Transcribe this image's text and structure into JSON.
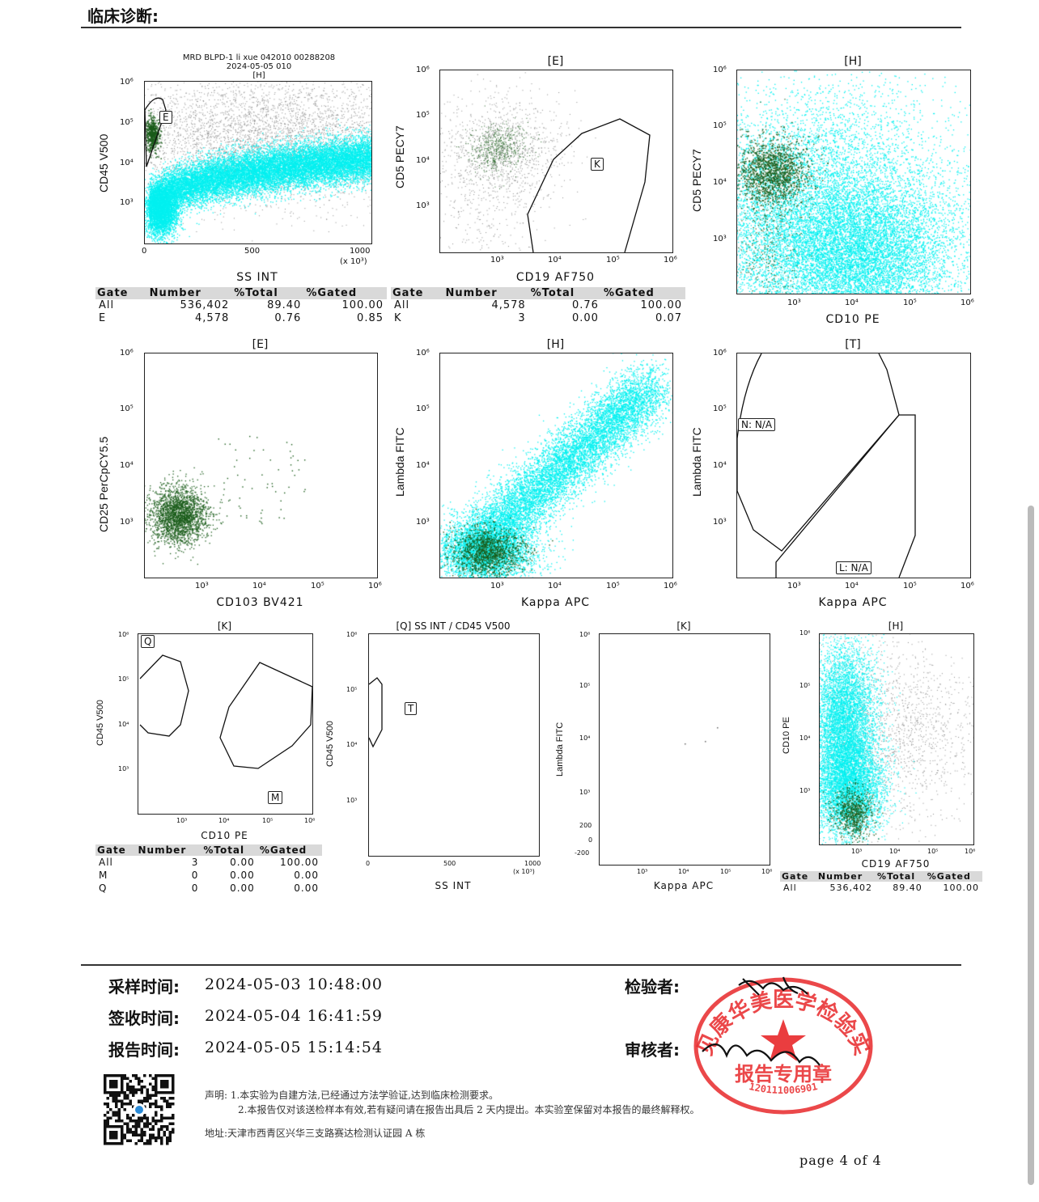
{
  "heading": "临床诊断:",
  "colors": {
    "cyan": "#00f0f0",
    "green": "#1a5c1a",
    "gray": "#8a8a8a"
  },
  "panels": [
    {
      "id": "p1",
      "title1": "MRD BLPD-1 li xue 042010 00288208",
      "title2": "2024-05-05 010",
      "title3": "[H]",
      "xlabel": "SS INT",
      "ylabel": "CD45 V500",
      "xticks": [
        "0",
        "500",
        "1000"
      ],
      "xunit": "(x 10³)",
      "yticks": [
        "10⁶",
        "10⁵",
        "10⁴",
        "10³"
      ],
      "gates": [
        "E"
      ]
    },
    {
      "id": "p2",
      "title": "[E]",
      "xlabel": "CD19 AF750",
      "ylabel": "CD5 PECY7",
      "xticks": [
        "10³",
        "10⁴",
        "10⁵",
        "10⁶"
      ],
      "yticks": [
        "10⁶",
        "10⁵",
        "10⁴",
        "10³"
      ],
      "gates": [
        "K"
      ]
    },
    {
      "id": "p3",
      "title": "[H]",
      "xlabel": "CD10 PE",
      "ylabel": "CD5 PECY7",
      "xticks": [
        "10³",
        "10⁴",
        "10⁵",
        "10⁶"
      ],
      "yticks": [
        "10⁶",
        "10⁵",
        "10⁴",
        "10³"
      ]
    },
    {
      "id": "p4",
      "title": "[E]",
      "xlabel": "CD103 BV421",
      "ylabel": "CD25 PerCpCY5.5",
      "xticks": [
        "10³",
        "10⁴",
        "10⁵",
        "10⁶"
      ],
      "yticks": [
        "10⁶",
        "10⁵",
        "10⁴",
        "10³"
      ]
    },
    {
      "id": "p5",
      "title": "[H]",
      "xlabel": "Kappa APC",
      "ylabel": "Lambda FITC",
      "xticks": [
        "10³",
        "10⁴",
        "10⁵",
        "10⁶"
      ],
      "yticks": [
        "10⁶",
        "10⁵",
        "10⁴",
        "10³"
      ]
    },
    {
      "id": "p6",
      "title": "[T]",
      "xlabel": "Kappa APC",
      "ylabel": "Lambda FITC",
      "xticks": [
        "10³",
        "10⁴",
        "10⁵",
        "10⁶"
      ],
      "yticks": [
        "10⁶",
        "10⁵",
        "10⁴",
        "10³"
      ],
      "gates": [
        "N: N/A",
        "L: N/A"
      ]
    },
    {
      "id": "p7",
      "title": "[K]",
      "xlabel": "CD10 PE",
      "ylabel": "CD45 V500",
      "xticks": [
        "10³",
        "10⁴",
        "10⁵",
        "10⁶"
      ],
      "yticks": [
        "10⁶",
        "10⁵",
        "10⁴",
        "10³"
      ],
      "gates": [
        "Q",
        "M"
      ]
    },
    {
      "id": "p8",
      "title": "[Q] SS INT / CD45 V500",
      "xlabel": "SS INT",
      "ylabel": "CD45 V500",
      "xticks": [
        "0",
        "500",
        "1000"
      ],
      "xunit": "(x 10³)",
      "yticks": [
        "10⁶",
        "10⁵",
        "10⁴",
        "10³"
      ],
      "gates": [
        "T"
      ]
    },
    {
      "id": "p9",
      "title": "[K]",
      "xlabel": "Kappa APC",
      "ylabel": "Lambda FITC",
      "xticks": [
        "10³",
        "10⁴",
        "10⁵",
        "10⁶"
      ],
      "yticks": [
        "10⁶",
        "10⁵",
        "10⁴",
        "10³",
        "200",
        "0",
        "-200"
      ]
    },
    {
      "id": "p10",
      "title": "[H]",
      "xlabel": "CD19 AF750",
      "ylabel": "CD10 PE",
      "xticks": [
        "10³",
        "10⁴",
        "10⁵",
        "10⁶"
      ],
      "yticks": [
        "10⁶",
        "10⁵",
        "10⁴",
        "10³"
      ]
    }
  ],
  "tables": {
    "t1": {
      "headers": [
        "Gate",
        "Number",
        "%Total",
        "%Gated"
      ],
      "rows": [
        [
          "All",
          "536,402",
          "89.40",
          "100.00"
        ],
        [
          "E",
          "4,578",
          "0.76",
          "0.85"
        ]
      ]
    },
    "t2": {
      "headers": [
        "Gate",
        "Number",
        "%Total",
        "%Gated"
      ],
      "rows": [
        [
          "All",
          "4,578",
          "0.76",
          "100.00"
        ],
        [
          "K",
          "3",
          "0.00",
          "0.07"
        ]
      ]
    },
    "t3": {
      "headers": [
        "Gate",
        "Number",
        "%Total",
        "%Gated"
      ],
      "rows": [
        [
          "All",
          "3",
          "0.00",
          "100.00"
        ],
        [
          "M",
          "0",
          "0.00",
          "0.00"
        ],
        [
          "Q",
          "0",
          "0.00",
          "0.00"
        ]
      ]
    },
    "t4": {
      "headers": [
        "Gate",
        "Number",
        "%Total",
        "%Gated"
      ],
      "rows": [
        [
          "All",
          "536,402",
          "89.40",
          "100.00"
        ]
      ]
    }
  },
  "footer": {
    "sample_time_label": "采样时间:",
    "sample_time": "2024-05-03  10:48:00",
    "receive_time_label": "签收时间:",
    "receive_time": "2024-05-04  16:41:59",
    "report_time_label": "报告时间:",
    "report_time": "2024-05-05  15:14:54",
    "inspector_label": "检验者:",
    "reviewer_label": "审核者:",
    "stamp_text": "天津见康华美医学检验实验室",
    "stamp_sub": "报告专用章",
    "stamp_num": "120111006901",
    "note1": "声明: 1.本实验为自建方法,已经通过方法学验证,达到临床检测要求。",
    "note2": "2.本报告仅对该送检样本有效,若有疑问请在报告出具后 2 天内提出。本实验室保留对本报告的最终解释权。",
    "address": "地址:天津市西青区兴华三支路赛达检测认证园 A 栋",
    "page": "page 4 of 4"
  }
}
